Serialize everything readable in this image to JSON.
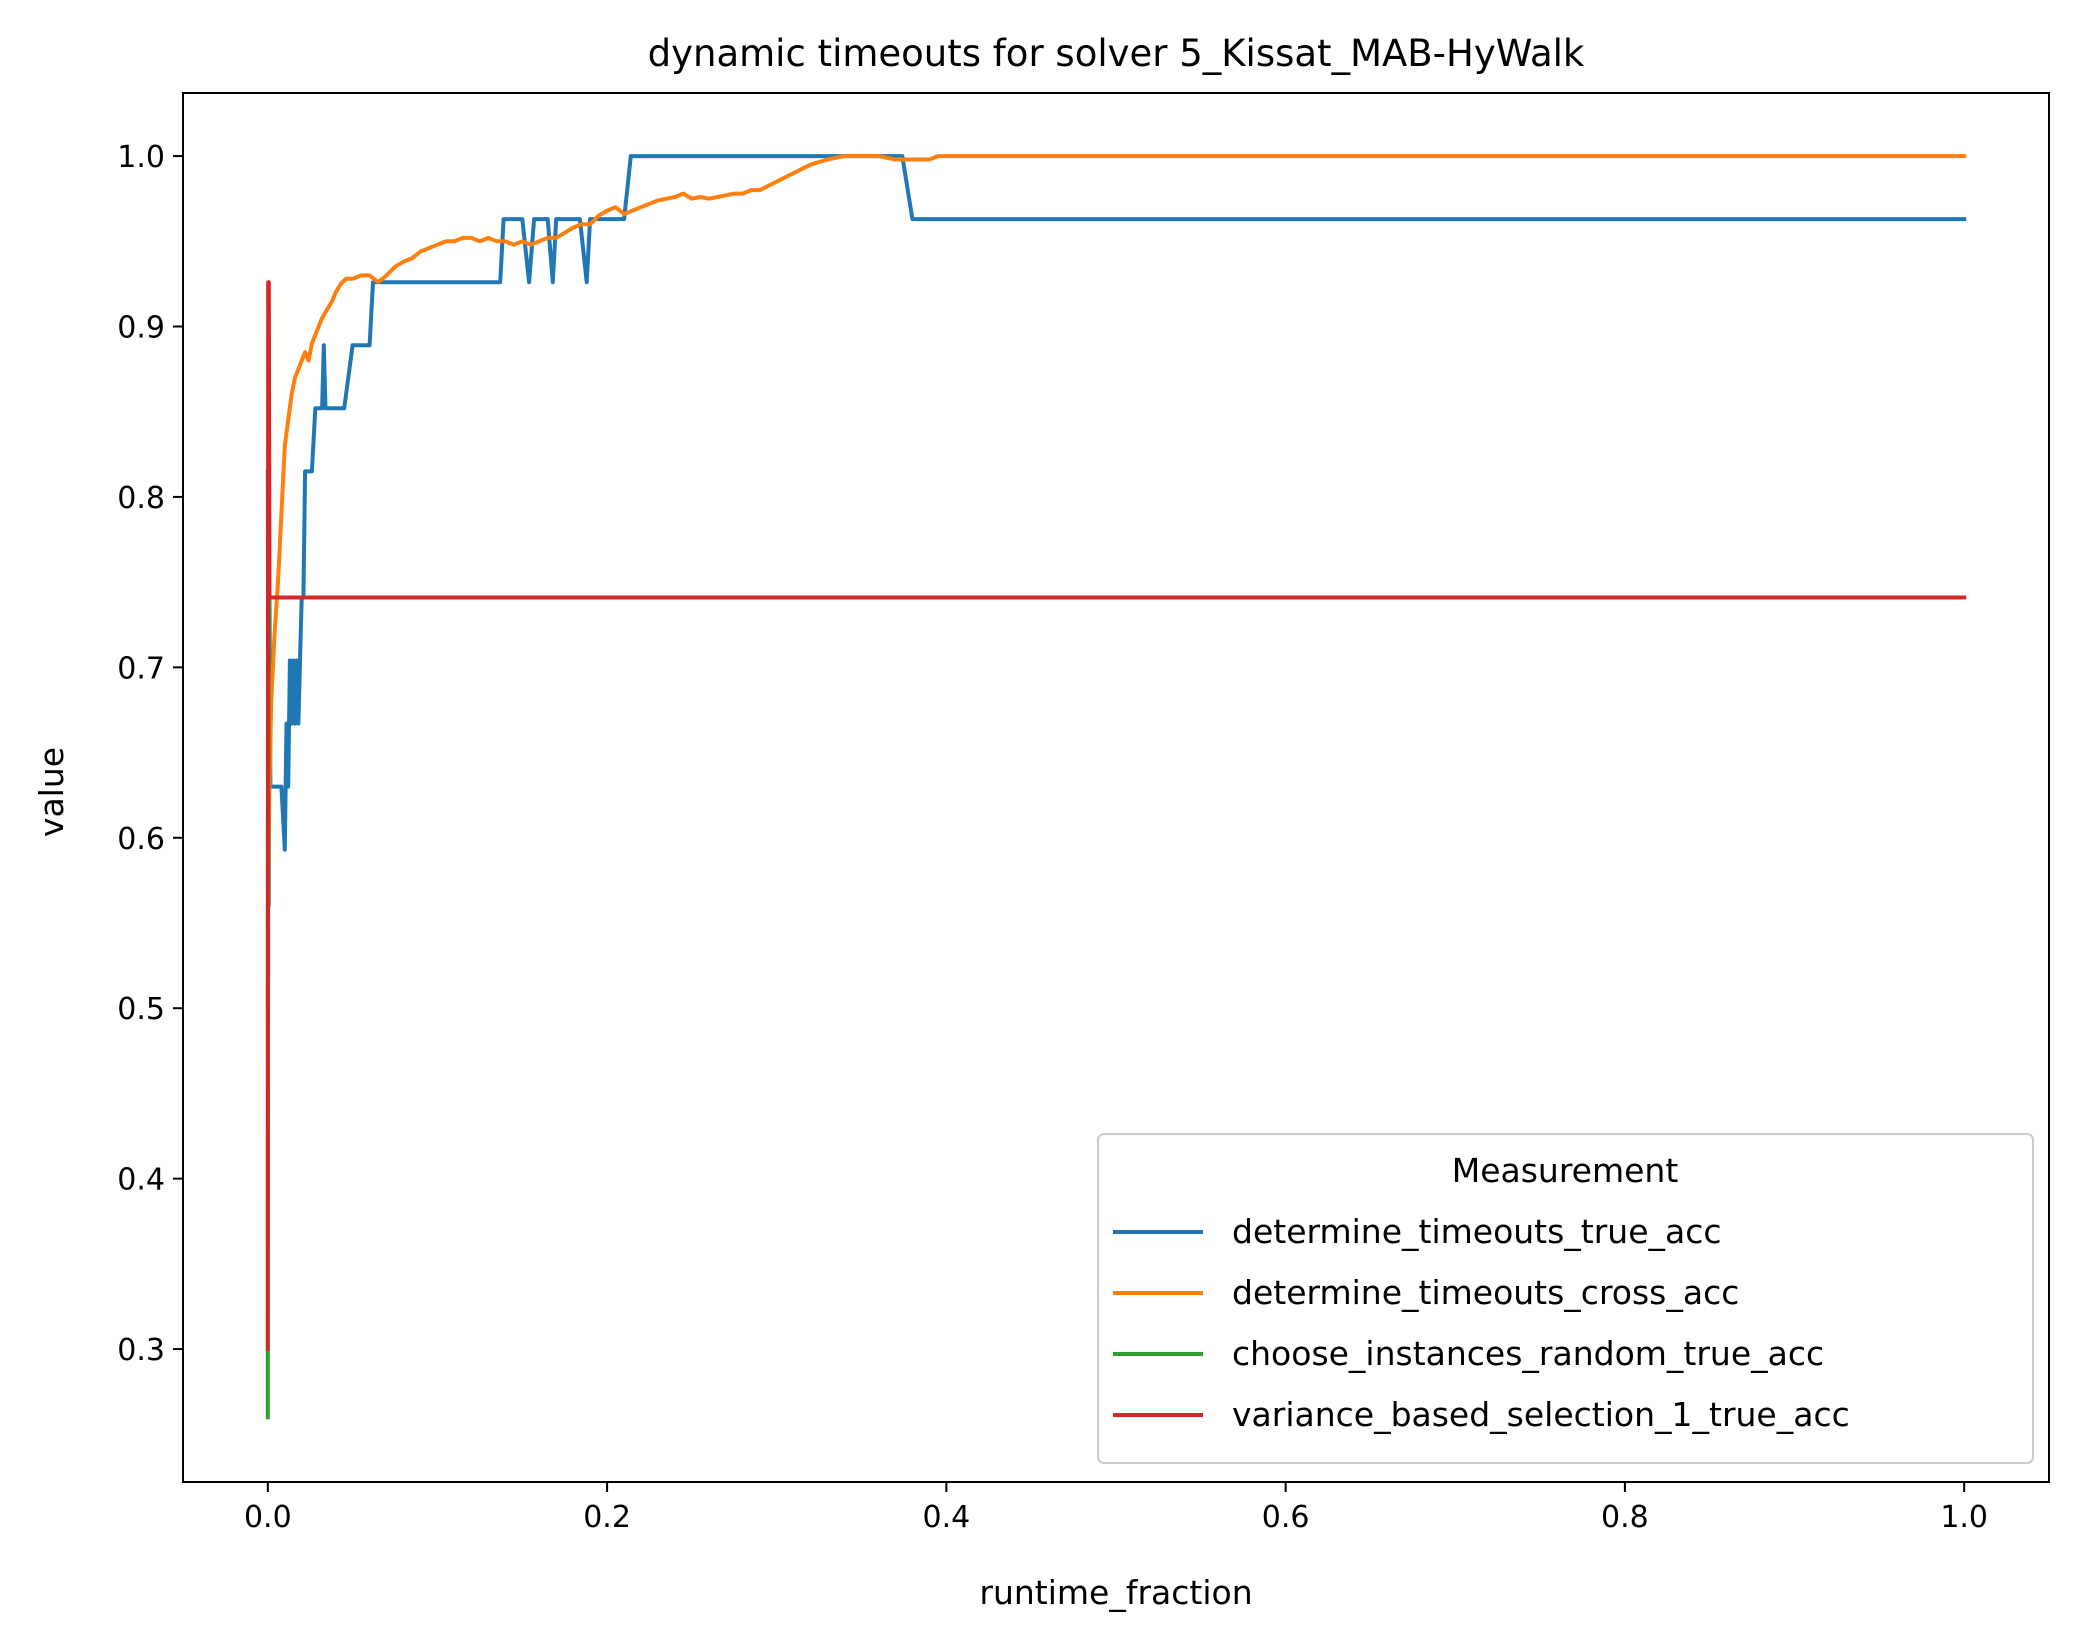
{
  "chart_data": {
    "type": "line",
    "title": "dynamic timeouts for solver 5_Kissat_MAB-HyWalk",
    "xlabel": "runtime_fraction",
    "ylabel": "value",
    "xlim": [
      -0.05,
      1.05
    ],
    "ylim": [
      0.222,
      1.037
    ],
    "xticks": [
      0.0,
      0.2,
      0.4,
      0.6,
      0.8,
      1.0
    ],
    "xtick_labels": [
      "0.0",
      "0.2",
      "0.4",
      "0.6",
      "0.8",
      "1.0"
    ],
    "yticks": [
      0.3,
      0.4,
      0.5,
      0.6,
      0.7,
      0.8,
      0.9,
      1.0
    ],
    "ytick_labels": [
      "0.3",
      "0.4",
      "0.5",
      "0.6",
      "0.7",
      "0.8",
      "0.9",
      "1.0"
    ],
    "grid": false,
    "legend": {
      "title": "Measurement",
      "location": "lower-right"
    },
    "series": [
      {
        "name": "determine_timeouts_true_acc",
        "color": "#1f77b4",
        "x": [
          0.0,
          0.0005,
          0.001,
          0.0015,
          0.002,
          0.003,
          0.004,
          0.006,
          0.008,
          0.01,
          0.011,
          0.012,
          0.013,
          0.014,
          0.015,
          0.016,
          0.017,
          0.018,
          0.019,
          0.02,
          0.021,
          0.022,
          0.023,
          0.024,
          0.026,
          0.028,
          0.03,
          0.032,
          0.033,
          0.034,
          0.036,
          0.04,
          0.045,
          0.05,
          0.055,
          0.06,
          0.062,
          0.064,
          0.07,
          0.08,
          0.1,
          0.12,
          0.137,
          0.139,
          0.145,
          0.15,
          0.154,
          0.157,
          0.16,
          0.165,
          0.168,
          0.17,
          0.175,
          0.18,
          0.184,
          0.188,
          0.19,
          0.2,
          0.21,
          0.214,
          0.25,
          0.3,
          0.35,
          0.374,
          0.38,
          0.4,
          0.6,
          0.8,
          1.0
        ],
        "y": [
          0.815,
          0.56,
          0.74,
          0.63,
          0.63,
          0.63,
          0.63,
          0.63,
          0.63,
          0.593,
          0.667,
          0.63,
          0.704,
          0.667,
          0.704,
          0.667,
          0.704,
          0.667,
          0.704,
          0.741,
          0.741,
          0.815,
          0.815,
          0.815,
          0.815,
          0.852,
          0.852,
          0.852,
          0.889,
          0.852,
          0.852,
          0.852,
          0.852,
          0.889,
          0.889,
          0.889,
          0.926,
          0.926,
          0.926,
          0.926,
          0.926,
          0.926,
          0.926,
          0.963,
          0.963,
          0.963,
          0.926,
          0.963,
          0.963,
          0.963,
          0.926,
          0.963,
          0.963,
          0.963,
          0.963,
          0.926,
          0.963,
          0.963,
          0.963,
          1.0,
          1.0,
          1.0,
          1.0,
          1.0,
          0.963,
          0.963,
          0.963,
          0.963,
          0.963
        ]
      },
      {
        "name": "determine_timeouts_cross_acc",
        "color": "#ff7f0e",
        "x": [
          0.0,
          0.001,
          0.002,
          0.004,
          0.006,
          0.008,
          0.01,
          0.012,
          0.014,
          0.016,
          0.018,
          0.02,
          0.022,
          0.024,
          0.026,
          0.028,
          0.03,
          0.032,
          0.035,
          0.038,
          0.04,
          0.043,
          0.046,
          0.05,
          0.055,
          0.06,
          0.065,
          0.07,
          0.075,
          0.08,
          0.085,
          0.09,
          0.095,
          0.1,
          0.105,
          0.11,
          0.115,
          0.12,
          0.125,
          0.13,
          0.135,
          0.14,
          0.145,
          0.15,
          0.155,
          0.16,
          0.165,
          0.17,
          0.175,
          0.18,
          0.185,
          0.19,
          0.195,
          0.2,
          0.205,
          0.21,
          0.215,
          0.22,
          0.225,
          0.23,
          0.235,
          0.24,
          0.245,
          0.25,
          0.255,
          0.26,
          0.265,
          0.27,
          0.275,
          0.28,
          0.285,
          0.29,
          0.3,
          0.31,
          0.32,
          0.33,
          0.34,
          0.35,
          0.36,
          0.37,
          0.38,
          0.39,
          0.395,
          0.4,
          0.6,
          0.8,
          1.0
        ],
        "y": [
          0.55,
          0.63,
          0.68,
          0.72,
          0.75,
          0.79,
          0.83,
          0.845,
          0.86,
          0.87,
          0.875,
          0.88,
          0.885,
          0.88,
          0.89,
          0.895,
          0.9,
          0.905,
          0.91,
          0.915,
          0.92,
          0.925,
          0.928,
          0.928,
          0.93,
          0.93,
          0.926,
          0.93,
          0.935,
          0.938,
          0.94,
          0.944,
          0.946,
          0.948,
          0.95,
          0.95,
          0.952,
          0.952,
          0.95,
          0.952,
          0.95,
          0.95,
          0.948,
          0.95,
          0.948,
          0.95,
          0.952,
          0.952,
          0.955,
          0.958,
          0.96,
          0.96,
          0.965,
          0.968,
          0.97,
          0.966,
          0.968,
          0.97,
          0.972,
          0.974,
          0.975,
          0.976,
          0.978,
          0.975,
          0.976,
          0.975,
          0.976,
          0.977,
          0.978,
          0.978,
          0.98,
          0.98,
          0.985,
          0.99,
          0.995,
          0.998,
          1.0,
          1.0,
          1.0,
          0.998,
          0.998,
          0.998,
          1.0,
          1.0,
          1.0,
          1.0,
          1.0
        ]
      },
      {
        "name": "choose_instances_random_true_acc",
        "color": "#2ca02c",
        "x": [
          0.0,
          0.0,
          0.0002,
          0.0004,
          0.0006,
          0.0008,
          0.001
        ],
        "y": [
          0.26,
          0.295,
          0.58,
          0.66,
          0.7,
          0.73,
          0.741
        ]
      },
      {
        "name": "variance_based_selection_1_true_acc",
        "color": "#d62728",
        "x": [
          0.0,
          0.0,
          0.0002,
          0.0006,
          0.001,
          0.0015,
          0.003,
          0.01,
          0.05,
          0.2,
          0.4,
          0.6,
          0.8,
          1.0
        ],
        "y": [
          0.3,
          0.5,
          0.926,
          0.926,
          0.741,
          0.741,
          0.741,
          0.741,
          0.741,
          0.741,
          0.741,
          0.741,
          0.741,
          0.741
        ]
      }
    ]
  }
}
